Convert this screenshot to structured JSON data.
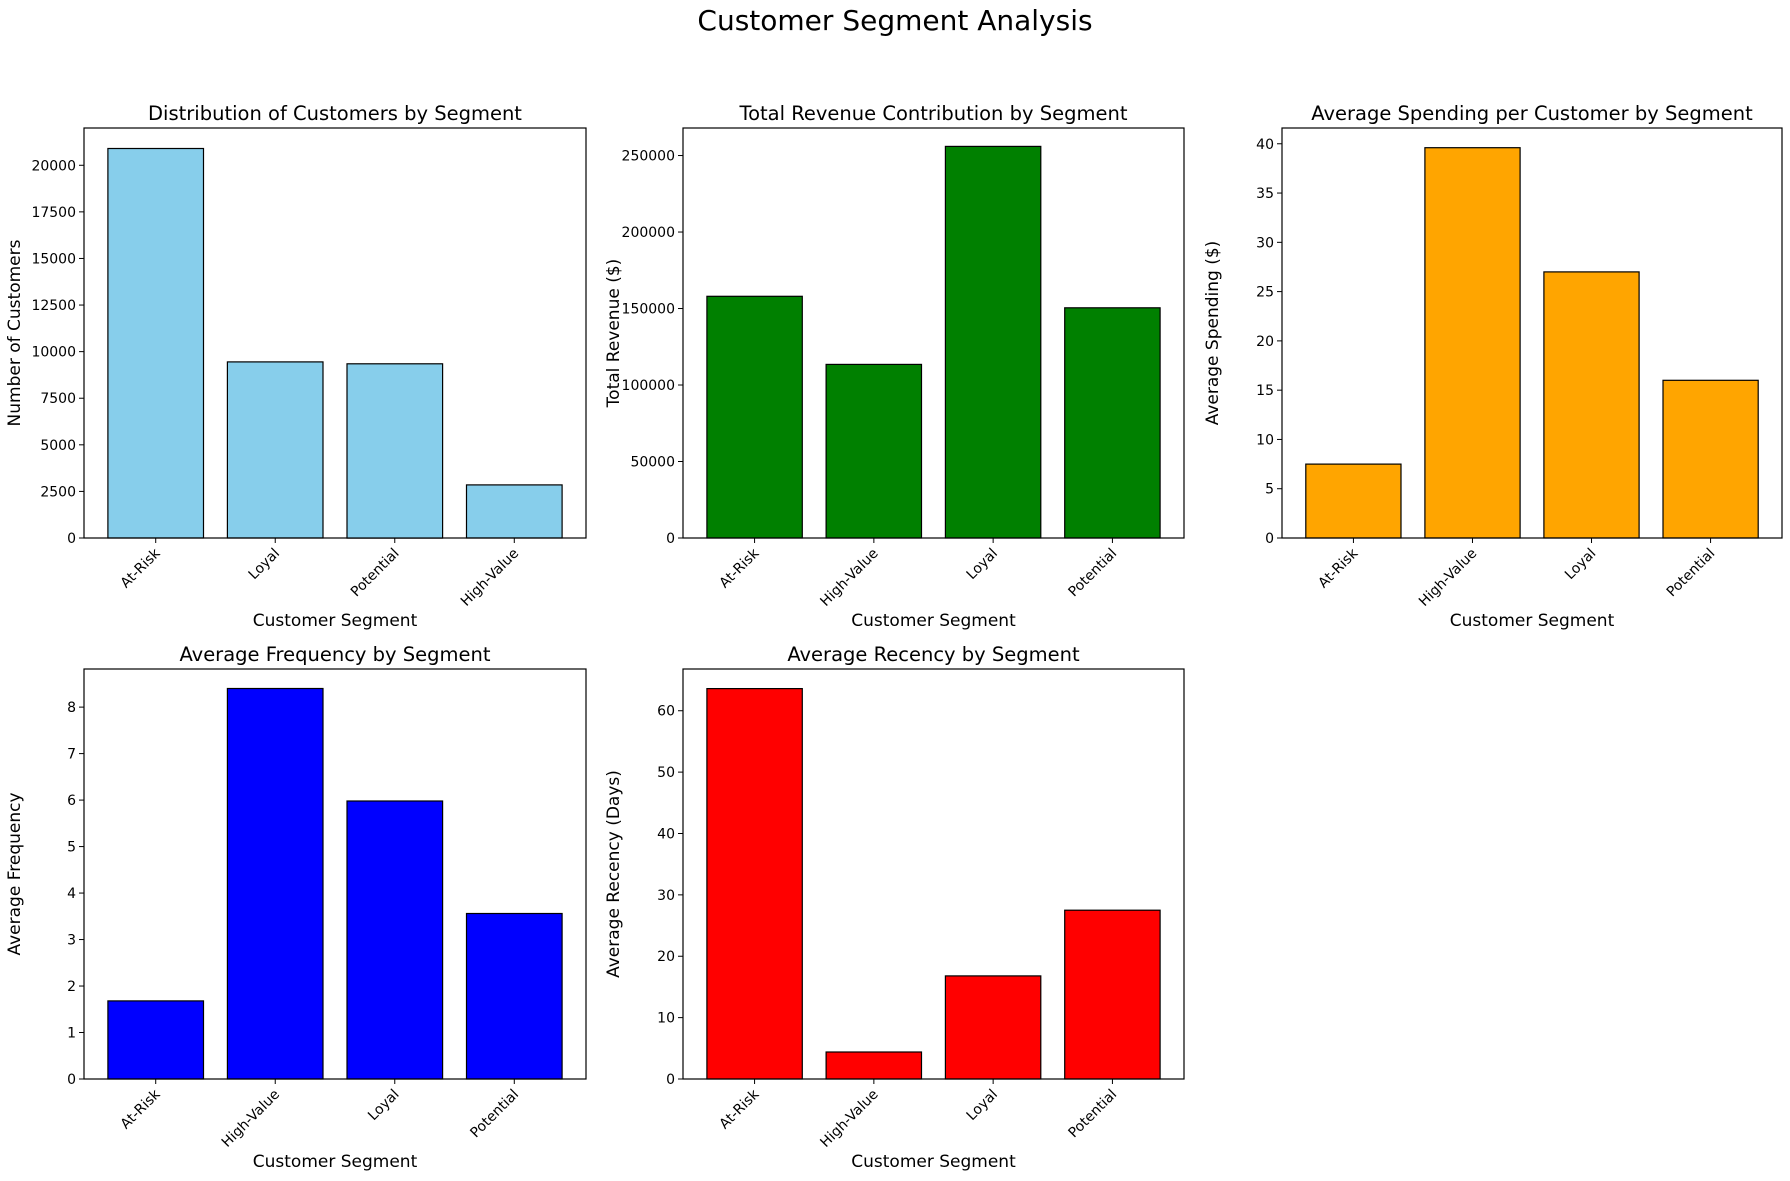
{
  "figure_title": "Customer Segment Analysis",
  "chart_data": [
    {
      "type": "bar",
      "title": "Distribution of Customers by Segment",
      "xlabel": "Customer Segment",
      "ylabel": "Number of Customers",
      "categories": [
        "At-Risk",
        "Loyal",
        "Potential",
        "High-Value"
      ],
      "values": [
        20900,
        9450,
        9350,
        2850
      ],
      "ylim": [
        0,
        22000
      ],
      "yticks": [
        0,
        2500,
        5000,
        7500,
        10000,
        12500,
        15000,
        17500,
        20000
      ],
      "color": "#87CEEB",
      "grid": false
    },
    {
      "type": "bar",
      "title": "Total Revenue Contribution by Segment",
      "xlabel": "Customer Segment",
      "ylabel": "Total Revenue ($)",
      "categories": [
        "At-Risk",
        "High-Value",
        "Loyal",
        "Potential"
      ],
      "values": [
        158000,
        113500,
        256000,
        150500
      ],
      "ylim": [
        0,
        268000
      ],
      "yticks": [
        0,
        50000,
        100000,
        150000,
        200000,
        250000
      ],
      "color": "#008000",
      "grid": false
    },
    {
      "type": "bar",
      "title": "Average Spending per Customer by Segment",
      "xlabel": "Customer Segment",
      "ylabel": "Average Spending ($)",
      "categories": [
        "At-Risk",
        "High-Value",
        "Loyal",
        "Potential"
      ],
      "values": [
        7.5,
        39.6,
        27.0,
        16.0
      ],
      "ylim": [
        0,
        41.6
      ],
      "yticks": [
        0,
        5,
        10,
        15,
        20,
        25,
        30,
        35,
        40
      ],
      "color": "#FFA500",
      "grid": false
    },
    {
      "type": "bar",
      "title": "Average Frequency by Segment",
      "xlabel": "Customer Segment",
      "ylabel": "Average Frequency",
      "categories": [
        "At-Risk",
        "High-Value",
        "Loyal",
        "Potential"
      ],
      "values": [
        1.68,
        8.4,
        5.98,
        3.56
      ],
      "ylim": [
        0,
        8.82
      ],
      "yticks": [
        0,
        1,
        2,
        3,
        4,
        5,
        6,
        7,
        8
      ],
      "color": "#0000FF",
      "grid": false
    },
    {
      "type": "bar",
      "title": "Average Recency by Segment",
      "xlabel": "Customer Segment",
      "ylabel": "Average Recency (Days)",
      "categories": [
        "At-Risk",
        "High-Value",
        "Loyal",
        "Potential"
      ],
      "values": [
        63.6,
        4.4,
        16.8,
        27.5
      ],
      "ylim": [
        0,
        66.8
      ],
      "yticks": [
        0,
        10,
        20,
        30,
        40,
        50,
        60
      ],
      "color": "#FF0000",
      "grid": false
    }
  ]
}
